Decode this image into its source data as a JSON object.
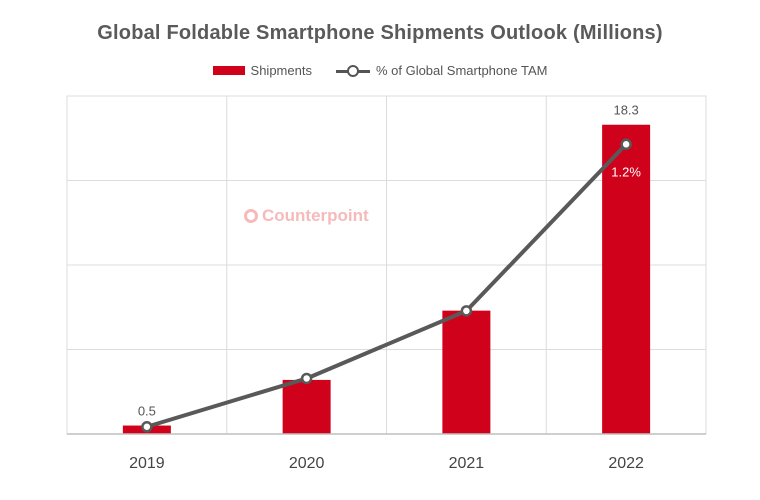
{
  "chart_data": {
    "type": "bar",
    "title": "Global Foldable Smartphone Shipments Outlook (Millions)",
    "categories": [
      "2019",
      "2020",
      "2021",
      "2022"
    ],
    "series": [
      {
        "name": "Shipments",
        "type": "bar",
        "values": [
          0.5,
          3.2,
          7.3,
          18.3
        ],
        "data_labels": [
          "0.5",
          "",
          "",
          "18.3"
        ]
      },
      {
        "name": "% of Global Smartphone TAM",
        "type": "line",
        "values": [
          0.03,
          0.23,
          0.51,
          1.2
        ],
        "data_labels": [
          "",
          "",
          "",
          "1.2%"
        ]
      }
    ],
    "ylim": [
      0,
      20
    ],
    "line_ylim": [
      0,
      1.4
    ],
    "grid": true,
    "legend": "top",
    "colors": {
      "bar": "#d0021b",
      "line": "#595959",
      "grid": "#dcdcdc"
    }
  },
  "watermark": {
    "text": "Counterpoint"
  }
}
